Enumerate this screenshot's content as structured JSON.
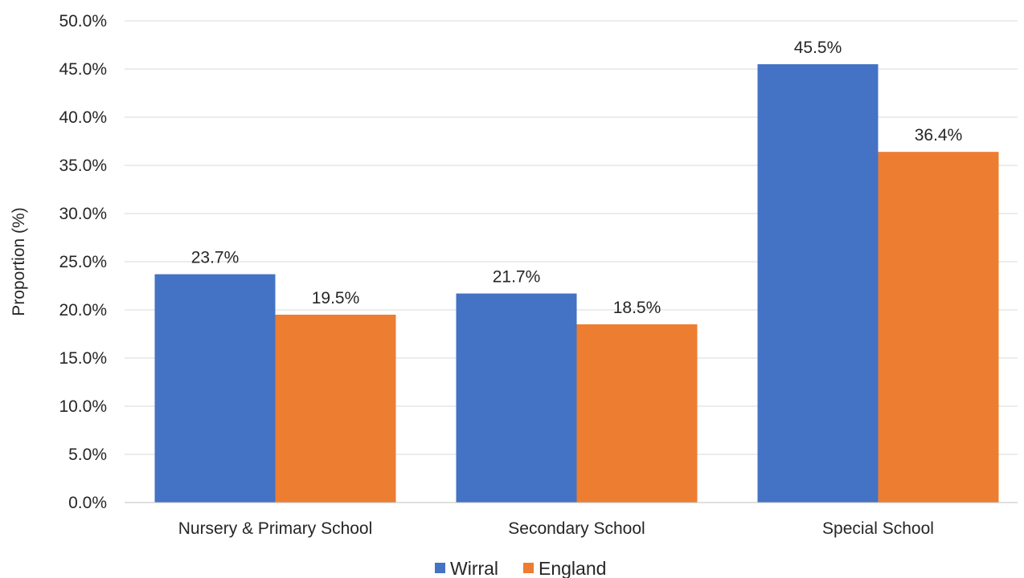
{
  "chart_data": {
    "type": "bar",
    "title": "",
    "xlabel": "",
    "ylabel": "Proportion (%)",
    "ylim": [
      0,
      50
    ],
    "ytick_values": [
      0,
      5,
      10,
      15,
      20,
      25,
      30,
      35,
      40,
      45,
      50
    ],
    "ytick_labels": [
      "0.0%",
      "5.0%",
      "10.0%",
      "15.0%",
      "20.0%",
      "25.0%",
      "30.0%",
      "35.0%",
      "40.0%",
      "45.0%",
      "50.0%"
    ],
    "grid": true,
    "legend_position": "bottom",
    "categories": [
      "Nursery & Primary School",
      "Secondary School",
      "Special School"
    ],
    "series": [
      {
        "name": "Wirral",
        "color": "#4472C4",
        "values": [
          23.7,
          21.7,
          45.5
        ],
        "labels": [
          "23.7%",
          "21.7%",
          "45.5%"
        ]
      },
      {
        "name": "England",
        "color": "#ED7D31",
        "values": [
          19.5,
          18.5,
          36.4
        ],
        "labels": [
          "19.5%",
          "18.5%",
          "36.4%"
        ]
      }
    ]
  }
}
